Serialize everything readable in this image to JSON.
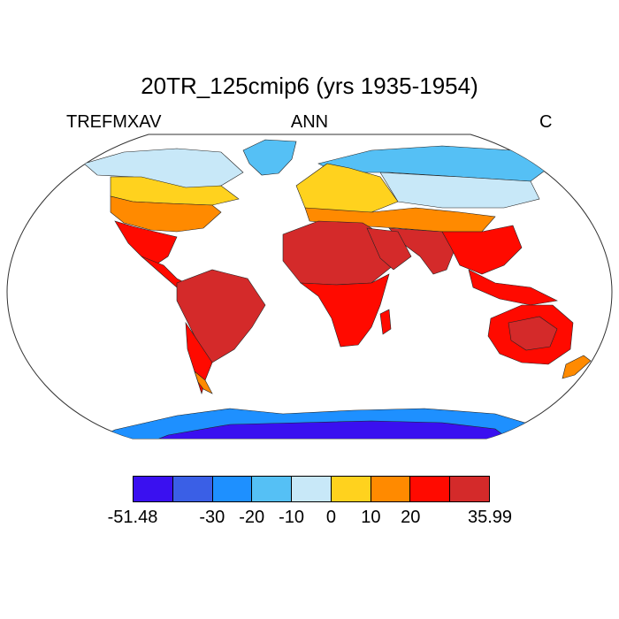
{
  "title": "20TR_125cmip6 (yrs 1935-1954)",
  "variable": "TREFMXAV",
  "period": "ANN",
  "units": "C",
  "colorbar": {
    "colors": [
      "#3a10f0",
      "#3a5fe6",
      "#1e90ff",
      "#55c0f5",
      "#c8e8f8",
      "#ffd21e",
      "#ff8a00",
      "#ff0a00",
      "#d42a2a"
    ],
    "labels": [
      "-51.48",
      "",
      "-30",
      "-20",
      "-10",
      "0",
      "10",
      "20",
      "",
      "35.99"
    ]
  }
}
